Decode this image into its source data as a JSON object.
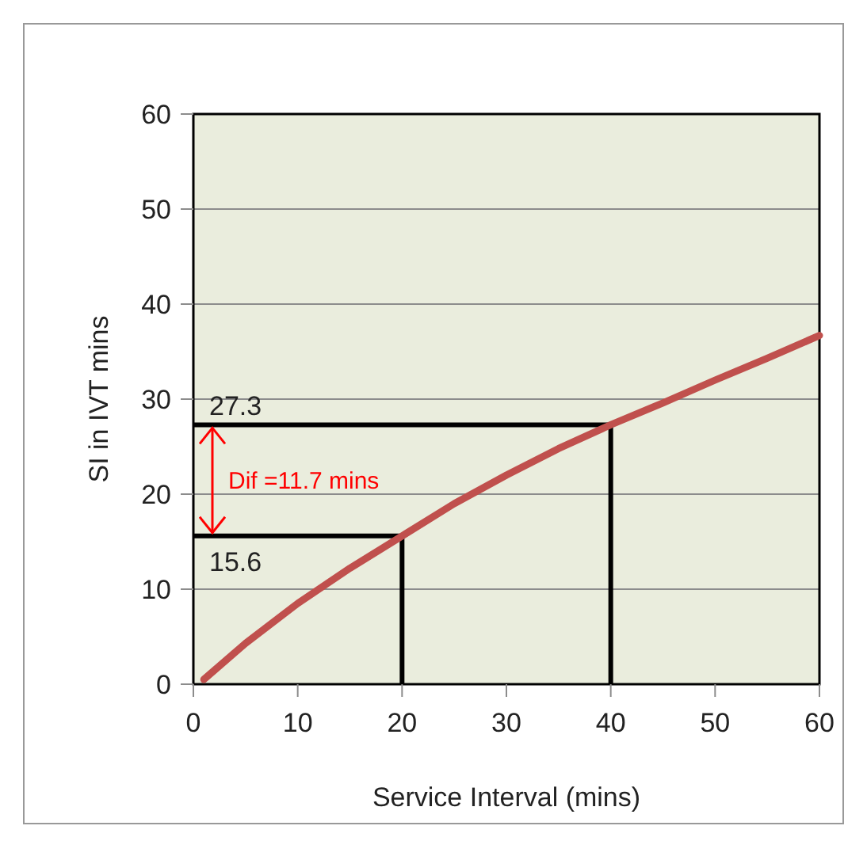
{
  "chart_data": {
    "type": "line",
    "xlabel": "Service Interval (mins)",
    "ylabel": "SI in IVT mins",
    "xlim": [
      0,
      60
    ],
    "ylim": [
      0,
      60
    ],
    "xticks": [
      0,
      10,
      20,
      30,
      40,
      50,
      60
    ],
    "yticks": [
      0,
      10,
      20,
      30,
      40,
      50,
      60
    ],
    "grid": "y",
    "series": [
      {
        "color": "#c0504d",
        "x": [
          1,
          5,
          10,
          15,
          20,
          25,
          30,
          35,
          40,
          45,
          50,
          55,
          60
        ],
        "values": [
          0.5,
          4.3,
          8.5,
          12.2,
          15.6,
          19,
          22,
          24.8,
          27.3,
          29.6,
          32,
          34.3,
          36.7
        ]
      },
      {
        "color": "#000000",
        "x": [
          0,
          20,
          20
        ],
        "values": [
          15.6,
          15.6,
          0
        ]
      },
      {
        "color": "#000000",
        "x": [
          0,
          40,
          40
        ],
        "values": [
          27.3,
          27.3,
          0
        ]
      }
    ],
    "annotations": [
      {
        "text": "27.3",
        "x": 0,
        "y": 27.3
      },
      {
        "text": "15.6",
        "x": 0,
        "y": 15.6
      },
      "Dif =11.7 mins"
    ]
  }
}
